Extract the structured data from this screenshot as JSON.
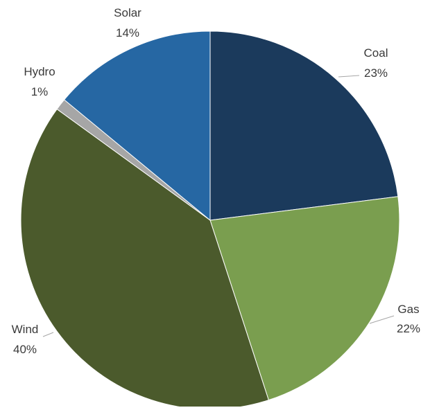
{
  "chart_data": {
    "type": "pie",
    "title": "",
    "start_angle_deg": 0,
    "direction": "clockwise",
    "slices": [
      {
        "label": "Coal",
        "value": 23,
        "value_label": "23%",
        "color": "#1b3a5c"
      },
      {
        "label": "Gas",
        "value": 22,
        "value_label": "22%",
        "color": "#7a9e4f"
      },
      {
        "label": "Wind",
        "value": 40,
        "value_label": "40%",
        "color": "#4b5a2c"
      },
      {
        "label": "Hydro",
        "value": 1,
        "value_label": "1%",
        "color": "#a6a6a6"
      },
      {
        "label": "Solar",
        "value": 14,
        "value_label": "14%",
        "color": "#2667a3"
      }
    ],
    "legend": "none",
    "data_labels": "outside with leader lines"
  }
}
